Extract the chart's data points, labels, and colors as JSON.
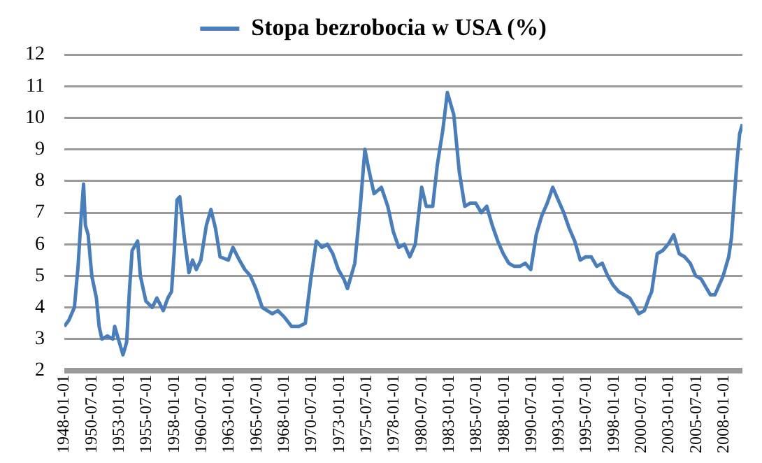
{
  "chart_data": {
    "type": "line",
    "legend": "top",
    "grid": "y",
    "marker": "none",
    "line_style": "solid",
    "ylim": [
      2,
      12
    ],
    "yticks": [
      2,
      3,
      4,
      5,
      6,
      7,
      8,
      9,
      10,
      11,
      12
    ],
    "xlim": [
      "1948-01",
      "2009-09"
    ],
    "xticks": [
      {
        "value": "1948-01-01",
        "label": "1948-01-01"
      },
      {
        "value": "1950-07-01",
        "label": "1950-07-01"
      },
      {
        "value": "1953-01-01",
        "label": "1953-01-01"
      },
      {
        "value": "1955-07-01",
        "label": "1955-07-01"
      },
      {
        "value": "1958-01-01",
        "label": "1958-01-01"
      },
      {
        "value": "1960-07-01",
        "label": "1960-07-01"
      },
      {
        "value": "1963-01-01",
        "label": "1963-01-01"
      },
      {
        "value": "1965-07-01",
        "label": "1965-07-01"
      },
      {
        "value": "1968-01-01",
        "label": "1968-01-01"
      },
      {
        "value": "1970-07-01",
        "label": "1970-07-01"
      },
      {
        "value": "1973-01-01",
        "label": "1973-01-01"
      },
      {
        "value": "1975-07-01",
        "label": "1975-07-01"
      },
      {
        "value": "1978-01-01",
        "label": "1978-01-01"
      },
      {
        "value": "1980-07-01",
        "label": "1980-07-01"
      },
      {
        "value": "1983-01-01",
        "label": "1983-01-01"
      },
      {
        "value": "1985-07-01",
        "label": "1985-07-01"
      },
      {
        "value": "1988-01-01",
        "label": "1988-01-01"
      },
      {
        "value": "1990-07-01",
        "label": "1990-07-01"
      },
      {
        "value": "1993-01-01",
        "label": "1993-01-01"
      },
      {
        "value": "1995-07-01",
        "label": "1995-07-01"
      },
      {
        "value": "1998-01-01",
        "label": "1998-01-01"
      },
      {
        "value": "2000-07-01",
        "label": "2000-07-01"
      },
      {
        "value": "2003-01-01",
        "label": "2003-01-01"
      },
      {
        "value": "2005-07-01",
        "label": "2005-07-01"
      },
      {
        "value": "2008-01-01",
        "label": "2008-01-01"
      }
    ],
    "x": [
      "1948-01",
      "1948-06",
      "1948-12",
      "1949-04",
      "1949-07",
      "1949-10",
      "1949-12",
      "1950-03",
      "1950-07",
      "1950-12",
      "1951-03",
      "1951-06",
      "1951-12",
      "1952-06",
      "1952-08",
      "1953-01",
      "1953-05",
      "1953-09",
      "1953-12",
      "1954-03",
      "1954-09",
      "1954-12",
      "1955-06",
      "1956-01",
      "1956-06",
      "1957-01",
      "1957-06",
      "1957-10",
      "1958-01",
      "1958-04",
      "1958-07",
      "1958-12",
      "1959-05",
      "1959-09",
      "1960-01",
      "1960-06",
      "1960-12",
      "1961-05",
      "1961-10",
      "1962-03",
      "1962-12",
      "1963-05",
      "1963-12",
      "1964-06",
      "1964-12",
      "1965-06",
      "1966-01",
      "1966-12",
      "1967-06",
      "1968-01",
      "1968-09",
      "1969-05",
      "1969-12",
      "1970-06",
      "1970-12",
      "1971-06",
      "1971-12",
      "1972-06",
      "1972-12",
      "1973-06",
      "1973-10",
      "1974-06",
      "1974-12",
      "1975-05",
      "1975-09",
      "1976-03",
      "1976-11",
      "1977-06",
      "1977-12",
      "1978-06",
      "1978-12",
      "1979-06",
      "1979-12",
      "1980-07",
      "1980-12",
      "1981-07",
      "1981-12",
      "1982-06",
      "1982-11",
      "1983-06",
      "1983-12",
      "1984-06",
      "1984-12",
      "1985-06",
      "1985-12",
      "1986-06",
      "1986-12",
      "1987-06",
      "1987-12",
      "1988-06",
      "1988-12",
      "1989-06",
      "1989-12",
      "1990-06",
      "1990-12",
      "1991-06",
      "1991-12",
      "1992-06",
      "1992-12",
      "1993-06",
      "1993-12",
      "1994-06",
      "1994-12",
      "1995-06",
      "1995-12",
      "1996-06",
      "1996-12",
      "1997-06",
      "1997-12",
      "1998-06",
      "1998-12",
      "1999-06",
      "1999-12",
      "2000-04",
      "2000-10",
      "2001-03",
      "2001-06",
      "2001-12",
      "2002-06",
      "2002-12",
      "2003-06",
      "2003-12",
      "2004-06",
      "2004-12",
      "2005-06",
      "2005-12",
      "2006-06",
      "2006-10",
      "2007-03",
      "2007-06",
      "2007-12",
      "2008-06",
      "2008-09",
      "2008-12",
      "2009-03",
      "2009-06",
      "2009-09"
    ],
    "series": [
      {
        "name": "Stopa bezrobocia w USA (%)",
        "color": "#4a7ebb",
        "values": [
          3.4,
          3.6,
          4.0,
          5.3,
          6.7,
          7.9,
          6.6,
          6.3,
          5.0,
          4.3,
          3.4,
          3.0,
          3.1,
          3.0,
          3.4,
          2.9,
          2.5,
          2.9,
          4.5,
          5.8,
          6.1,
          5.0,
          4.2,
          4.0,
          4.3,
          3.9,
          4.3,
          4.5,
          5.8,
          7.4,
          7.5,
          6.2,
          5.1,
          5.5,
          5.2,
          5.5,
          6.6,
          7.1,
          6.5,
          5.6,
          5.5,
          5.9,
          5.5,
          5.2,
          5.0,
          4.6,
          4.0,
          3.8,
          3.9,
          3.7,
          3.4,
          3.4,
          3.5,
          4.9,
          6.1,
          5.9,
          6.0,
          5.7,
          5.2,
          4.9,
          4.6,
          5.4,
          7.2,
          9.0,
          8.4,
          7.6,
          7.8,
          7.2,
          6.4,
          5.9,
          6.0,
          5.6,
          6.0,
          7.8,
          7.2,
          7.2,
          8.5,
          9.6,
          10.8,
          10.1,
          8.3,
          7.2,
          7.3,
          7.3,
          7.0,
          7.2,
          6.6,
          6.1,
          5.7,
          5.4,
          5.3,
          5.3,
          5.4,
          5.2,
          6.3,
          6.9,
          7.3,
          7.8,
          7.4,
          7.0,
          6.5,
          6.1,
          5.5,
          5.6,
          5.6,
          5.3,
          5.4,
          5.0,
          4.7,
          4.5,
          4.4,
          4.3,
          4.0,
          3.8,
          3.9,
          4.3,
          4.5,
          5.7,
          5.8,
          6.0,
          6.3,
          5.7,
          5.6,
          5.4,
          5.0,
          4.9,
          4.6,
          4.4,
          4.4,
          4.6,
          5.0,
          5.6,
          6.2,
          7.4,
          8.6,
          9.5,
          9.8
        ]
      }
    ]
  }
}
